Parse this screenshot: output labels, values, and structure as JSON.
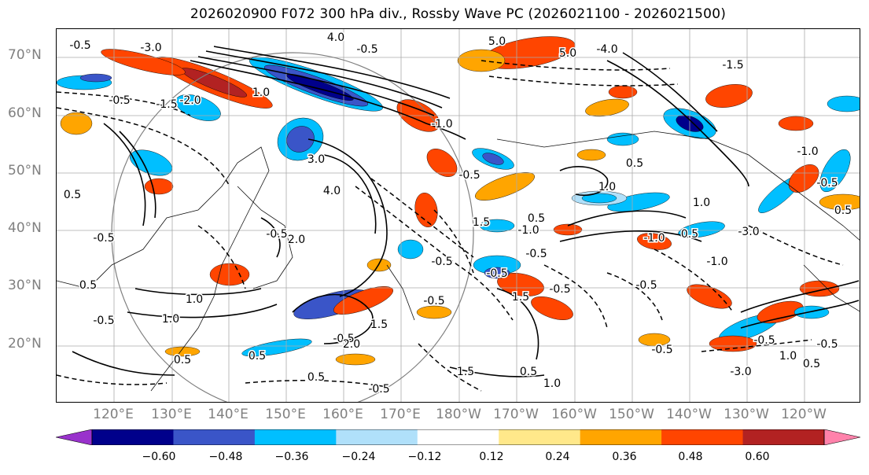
{
  "title": "2026020900 F072 300 hPa div., Rossby Wave PC (2026021100 - 2026021500)",
  "lat_labels": [
    "70°N",
    "60°N",
    "50°N",
    "40°N",
    "30°N",
    "20°N"
  ],
  "lon_labels": [
    "120°E",
    "130°E",
    "140°E",
    "150°E",
    "160°E",
    "170°E",
    "180°W",
    "170°W",
    "160°W",
    "150°W",
    "140°W",
    "130°W",
    "120°W"
  ],
  "colorbar": {
    "ticks": [
      "−0.60",
      "−0.48",
      "−0.36",
      "−0.24",
      "−0.12",
      "0.12",
      "0.24",
      "0.36",
      "0.48",
      "0.60"
    ],
    "colors": [
      "#9932cc",
      "#00008b",
      "#3a55c8",
      "#00bfff",
      "#b0e0fa",
      "#ffffff",
      "#ffe88a",
      "#ffa500",
      "#ff4500",
      "#b22222",
      "#ff82ab"
    ]
  },
  "contour_labels": [
    "-4.0",
    "-3.0",
    "-2.0",
    "-1.5",
    "-1.0",
    "-0.5",
    "0.5",
    "1.0",
    "1.5",
    "2.0",
    "3.0",
    "4.0",
    "5.0"
  ]
}
